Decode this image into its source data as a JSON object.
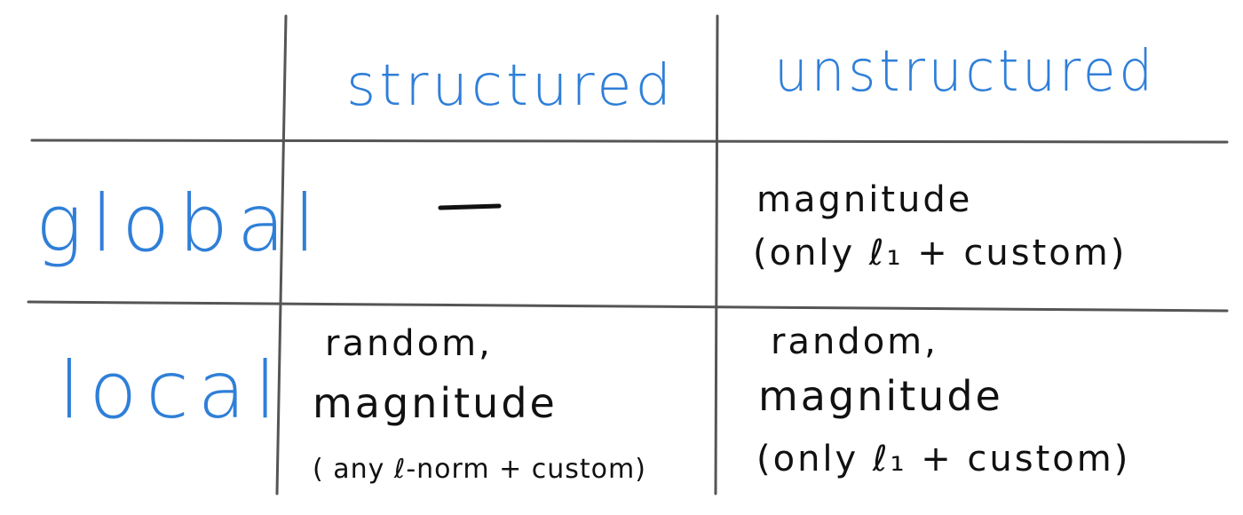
{
  "table": {
    "columns": [
      "structured",
      "unstructured"
    ],
    "rows": [
      {
        "label": "global",
        "structured": [
          "—"
        ],
        "unstructured": [
          "magnitude",
          "(only ℓ₁ + custom)"
        ]
      },
      {
        "label": "local",
        "structured": [
          "random,",
          "magnitude",
          "( any ℓ-norm + custom)"
        ],
        "unstructured": [
          "random,",
          "magnitude",
          "(only ℓ₁ + custom)"
        ]
      }
    ]
  },
  "colors": {
    "header_ink": "#2f7fd8",
    "body_ink": "#111111",
    "grid_ink": "#555555"
  }
}
